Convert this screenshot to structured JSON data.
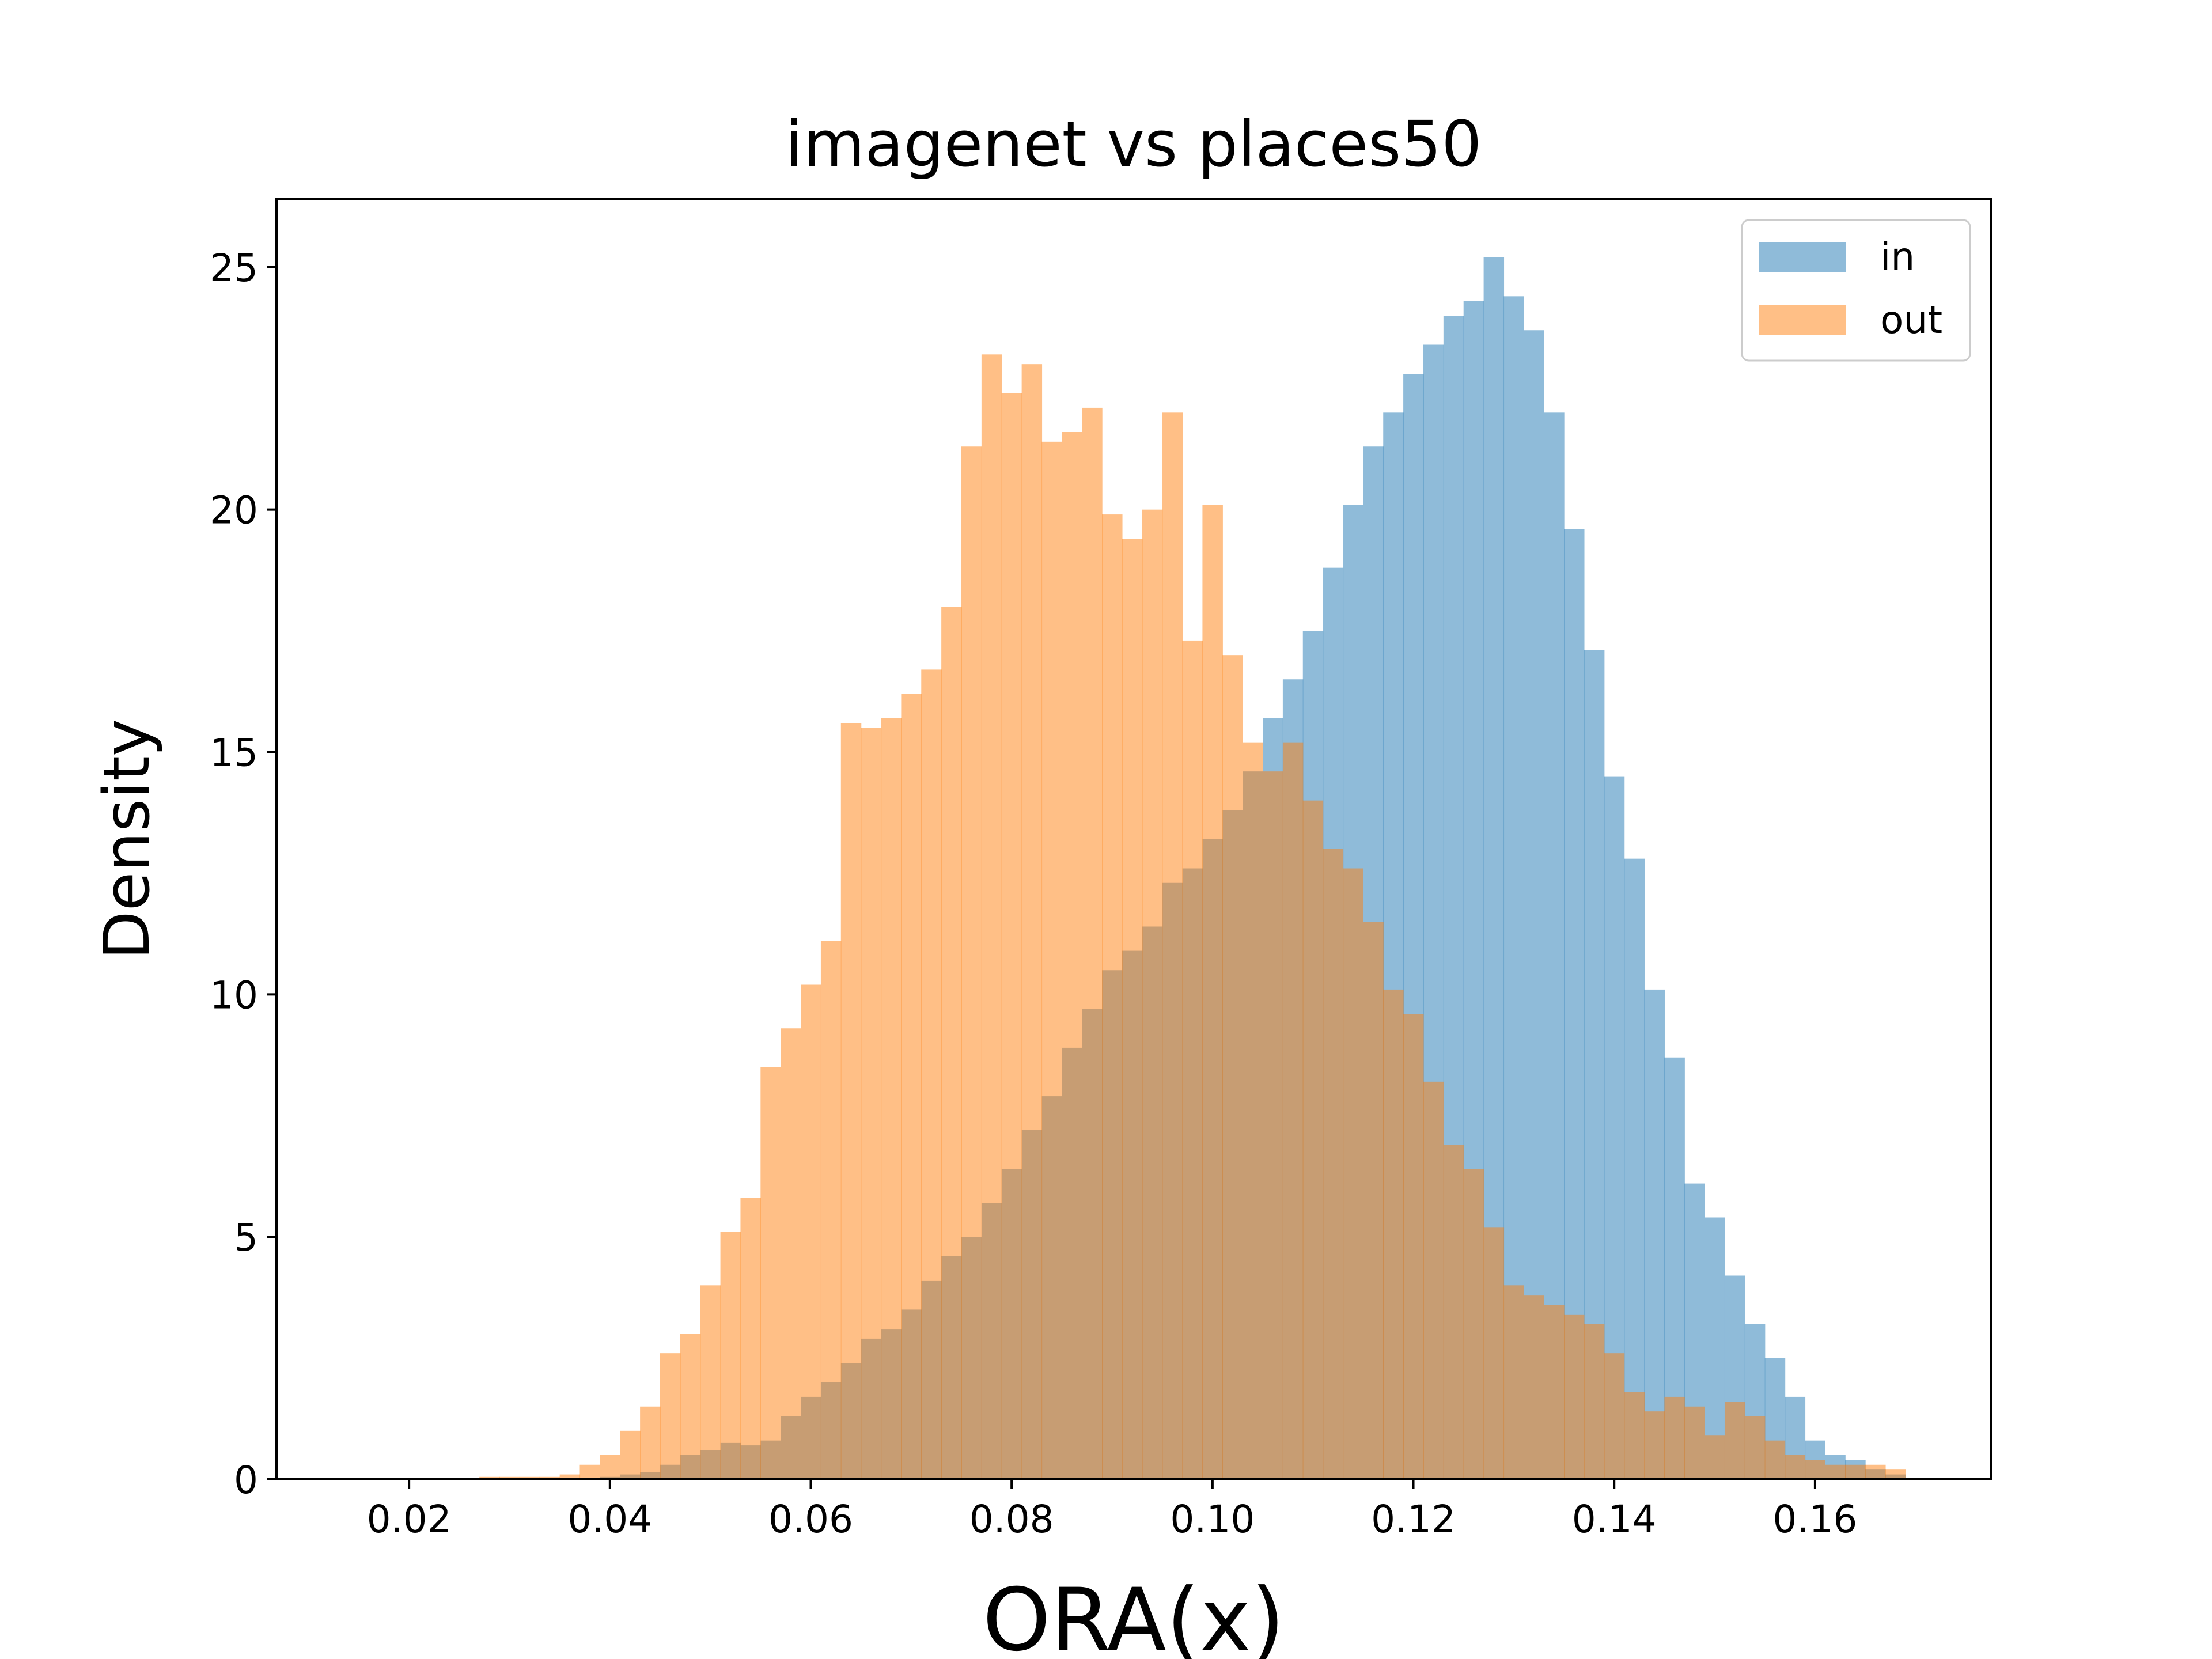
{
  "chart_data": {
    "type": "histogram",
    "title": "imagenet vs places50",
    "xlabel": "ORA(x)",
    "ylabel": "Density",
    "xlim": [
      0.0068,
      0.1775
    ],
    "ylim": [
      0,
      26.4
    ],
    "xticks": [
      0.02,
      0.04,
      0.06,
      0.08,
      0.1,
      0.12,
      0.14,
      0.16
    ],
    "xtick_labels": [
      "0.02",
      "0.04",
      "0.06",
      "0.08",
      "0.10",
      "0.12",
      "0.14",
      "0.16"
    ],
    "yticks": [
      0,
      5,
      10,
      15,
      20,
      25
    ],
    "ytick_labels": [
      "0",
      "5",
      "10",
      "15",
      "20",
      "25"
    ],
    "grid": false,
    "legend_position": "top-right",
    "series": [
      {
        "name": "in",
        "color": "#1f77b4",
        "alpha": 0.5,
        "bins": {
          "start": 0.037,
          "width": 0.002,
          "values": [
            0.0,
            0.05,
            0.1,
            0.15,
            0.3,
            0.5,
            0.6,
            0.75,
            0.7,
            0.8,
            1.3,
            1.7,
            2.0,
            2.4,
            2.9,
            3.1,
            3.5,
            4.1,
            4.6,
            5.0,
            5.7,
            6.4,
            7.2,
            7.9,
            8.9,
            9.7,
            10.5,
            10.9,
            11.4,
            12.3,
            12.6,
            13.2,
            13.8,
            14.6,
            15.7,
            16.5,
            17.5,
            18.8,
            20.1,
            21.3,
            22.0,
            22.8,
            23.4,
            24.0,
            24.3,
            25.2,
            24.4,
            23.7,
            22.0,
            19.6,
            17.1,
            14.5,
            12.8,
            10.1,
            8.7,
            6.1,
            5.4,
            4.2,
            3.2,
            2.5,
            1.7,
            0.8,
            0.5,
            0.4,
            0.2,
            0.1
          ]
        }
      },
      {
        "name": "out",
        "color": "#ff7f0e",
        "alpha": 0.5,
        "bins": {
          "start": 0.027,
          "width": 0.002,
          "values": [
            0.05,
            0.05,
            0.05,
            0.05,
            0.1,
            0.3,
            0.5,
            1.0,
            1.5,
            2.6,
            3.0,
            4.0,
            5.1,
            5.8,
            8.5,
            9.3,
            10.2,
            11.1,
            15.6,
            15.5,
            15.7,
            16.2,
            16.7,
            18.0,
            21.3,
            23.2,
            22.4,
            23.0,
            21.4,
            21.6,
            22.1,
            19.9,
            19.4,
            20.0,
            22.0,
            17.3,
            20.1,
            17.0,
            15.2,
            14.6,
            15.2,
            14.0,
            13.0,
            12.6,
            11.5,
            10.1,
            9.6,
            8.2,
            6.9,
            6.4,
            5.2,
            4.0,
            3.8,
            3.6,
            3.4,
            3.2,
            2.6,
            1.8,
            1.4,
            1.7,
            1.5,
            0.9,
            1.6,
            1.3,
            0.8,
            0.5,
            0.4,
            0.3,
            0.3,
            0.3,
            0.2
          ]
        }
      }
    ]
  }
}
